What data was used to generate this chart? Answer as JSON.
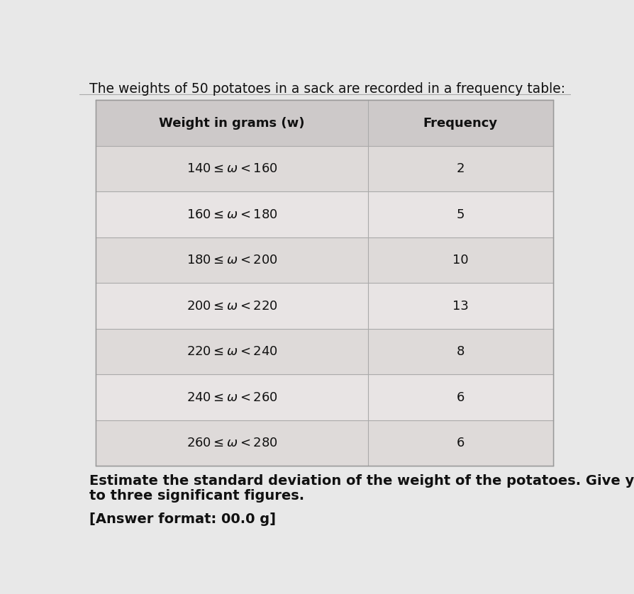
{
  "title": "The weights of 50 potatoes in a sack are recorded in a frequency table:",
  "col1_header": "Weight in grams (w)",
  "col2_header": "Frequency",
  "rows": [
    {
      "weight": "140 ≤ ω< 160",
      "freq": "2"
    },
    {
      "weight": "160 ≤ ω< 180",
      "freq": "5"
    },
    {
      "weight": "180 ≤ ω< 200",
      "freq": "10"
    },
    {
      "weight": "200 ≤ ω< 220",
      "freq": "13"
    },
    {
      "weight": "220 ≤ ω< 240",
      "freq": "8"
    },
    {
      "weight": "240 ≤ ω< 260",
      "freq": "6"
    },
    {
      "weight": "260 ≤ ω< 280",
      "freq": "6"
    }
  ],
  "footer_line1": "Estimate the standard deviation of the weight of the potatoes. Give your answer",
  "footer_line2": "to three significant figures.",
  "answer_format": "[Answer format: 00.0 g]",
  "page_bg": "#e8e8e8",
  "table_bg": "#e0dede",
  "header_row_color": "#cdc9c9",
  "data_row_color_1": "#dedad9",
  "data_row_color_2": "#e8e4e4",
  "outer_bg": "#c8c8c8",
  "table_border_color": "#999999",
  "divider_color": "#aaaaaa",
  "text_color": "#111111",
  "title_fontsize": 13.5,
  "header_fontsize": 13,
  "data_fontsize": 13,
  "footer_fontsize": 14
}
